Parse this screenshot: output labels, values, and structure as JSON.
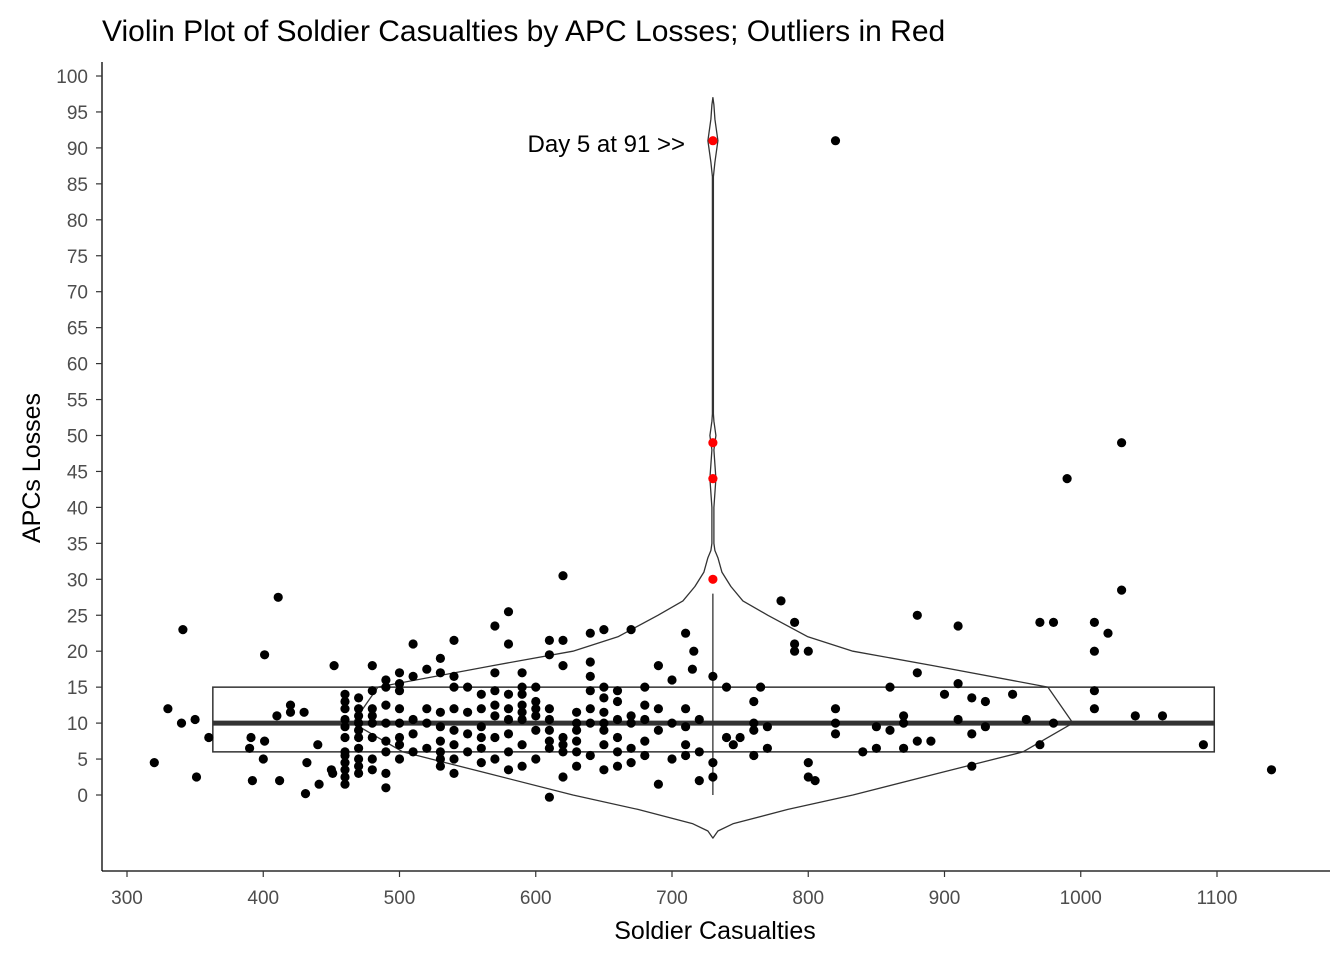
{
  "chart_data": {
    "type": "scatter",
    "title": "Violin Plot of Soldier Casualties by APC Losses; Outliers in Red",
    "xlabel": "Soldier Casualties",
    "ylabel": "APCs Losses",
    "xlim": [
      300,
      1100
    ],
    "ylim": [
      0,
      100
    ],
    "x_ticks": [
      "300",
      "400",
      "500",
      "600",
      "700",
      "800",
      "900",
      "1000",
      "1100"
    ],
    "y_ticks": [
      "0",
      "5",
      "10",
      "15",
      "20",
      "25",
      "30",
      "35",
      "40",
      "45",
      "50",
      "55",
      "60",
      "65",
      "70",
      "75",
      "80",
      "85",
      "90",
      "95",
      "100"
    ],
    "grid": false,
    "annotation": {
      "text": "Day 5 at 91 >>",
      "x": 720,
      "y": 91
    },
    "colors": {
      "points": "#000000",
      "outliers": "#ff0000",
      "violin": "#333333",
      "box": "#333333"
    },
    "box": {
      "x_min": 363,
      "x_max": 1098,
      "q1": 6,
      "median": 10,
      "q3": 15
    },
    "violin": {
      "x_center": 730,
      "y_values": [
        -6,
        -5,
        -4,
        -2,
        0,
        3,
        6,
        10,
        15,
        18,
        20,
        22,
        25,
        27,
        29,
        31,
        33,
        34,
        35,
        37,
        40,
        42,
        44,
        46,
        48,
        49,
        50,
        51,
        52,
        53,
        55,
        60,
        70,
        80,
        86,
        88,
        90,
        91,
        92,
        94,
        96,
        97
      ],
      "half_widths": [
        0,
        5,
        20,
        75,
        140,
        225,
        310,
        360,
        335,
        220,
        140,
        95,
        55,
        30,
        18,
        9,
        5,
        2,
        1,
        1,
        1,
        2,
        3,
        2,
        1,
        2,
        3,
        2,
        1,
        0.5,
        0.5,
        0.5,
        0.5,
        0.5,
        0.5,
        2,
        4,
        5,
        4,
        2,
        1,
        0
      ]
    },
    "whisker": {
      "x": 730,
      "from": 0,
      "to": 28
    },
    "outliers": [
      {
        "x": 730,
        "y": 91
      },
      {
        "x": 730,
        "y": 49
      },
      {
        "x": 730,
        "y": 44
      },
      {
        "x": 730,
        "y": 30
      }
    ],
    "points": [
      [
        320,
        4.5
      ],
      [
        330,
        12
      ],
      [
        340,
        10
      ],
      [
        341,
        23
      ],
      [
        350,
        10.5
      ],
      [
        351,
        2.5
      ],
      [
        360,
        8
      ],
      [
        390,
        6.5
      ],
      [
        391,
        8
      ],
      [
        392,
        2
      ],
      [
        400,
        5
      ],
      [
        401,
        7.5
      ],
      [
        401,
        19.5
      ],
      [
        410,
        11
      ],
      [
        411,
        27.5
      ],
      [
        412,
        2
      ],
      [
        420,
        12.5
      ],
      [
        430,
        11.5
      ],
      [
        431,
        0.2
      ],
      [
        432,
        4.5
      ],
      [
        440,
        7
      ],
      [
        441,
        1.5
      ],
      [
        450,
        3.5
      ],
      [
        451,
        3
      ],
      [
        452,
        18
      ],
      [
        460,
        1.5
      ],
      [
        460,
        2.5
      ],
      [
        460,
        3.5
      ],
      [
        460,
        4.5
      ],
      [
        460,
        5.5
      ],
      [
        460,
        6
      ],
      [
        460,
        8
      ],
      [
        460,
        9.5
      ],
      [
        460,
        10.5
      ],
      [
        460,
        12
      ],
      [
        460,
        13
      ],
      [
        460,
        14
      ],
      [
        470,
        3
      ],
      [
        470,
        4
      ],
      [
        470,
        5
      ],
      [
        470,
        6.5
      ],
      [
        470,
        8
      ],
      [
        470,
        9
      ],
      [
        470,
        10
      ],
      [
        470,
        11
      ],
      [
        470,
        12
      ],
      [
        470,
        13.5
      ],
      [
        480,
        3.5
      ],
      [
        480,
        5
      ],
      [
        480,
        8
      ],
      [
        480,
        10
      ],
      [
        480,
        11
      ],
      [
        480,
        12
      ],
      [
        480,
        14.5
      ],
      [
        480,
        18
      ],
      [
        490,
        1
      ],
      [
        490,
        3
      ],
      [
        490,
        6
      ],
      [
        490,
        7.5
      ],
      [
        490,
        10
      ],
      [
        490,
        12.5
      ],
      [
        490,
        15
      ],
      [
        490,
        16
      ],
      [
        500,
        5
      ],
      [
        500,
        7
      ],
      [
        500,
        8
      ],
      [
        500,
        10
      ],
      [
        500,
        12
      ],
      [
        500,
        14.5
      ],
      [
        500,
        15.5
      ],
      [
        500,
        17
      ],
      [
        510,
        6
      ],
      [
        510,
        8.5
      ],
      [
        510,
        10.5
      ],
      [
        510,
        16.5
      ],
      [
        510,
        21
      ],
      [
        520,
        6.5
      ],
      [
        520,
        10
      ],
      [
        520,
        12
      ],
      [
        520,
        17.5
      ],
      [
        530,
        4
      ],
      [
        530,
        5
      ],
      [
        530,
        6
      ],
      [
        530,
        7.5
      ],
      [
        530,
        9.5
      ],
      [
        530,
        11.5
      ],
      [
        530,
        17
      ],
      [
        530,
        19
      ],
      [
        540,
        3
      ],
      [
        540,
        5
      ],
      [
        540,
        7
      ],
      [
        540,
        9
      ],
      [
        540,
        12
      ],
      [
        540,
        15
      ],
      [
        540,
        16.5
      ],
      [
        540,
        21.5
      ],
      [
        550,
        6
      ],
      [
        550,
        8.5
      ],
      [
        550,
        11.5
      ],
      [
        550,
        15
      ],
      [
        560,
        4.5
      ],
      [
        560,
        6.5
      ],
      [
        560,
        8
      ],
      [
        560,
        9.5
      ],
      [
        560,
        12
      ],
      [
        560,
        14
      ],
      [
        570,
        5
      ],
      [
        570,
        8
      ],
      [
        570,
        11
      ],
      [
        570,
        12.5
      ],
      [
        570,
        14.5
      ],
      [
        570,
        17
      ],
      [
        570,
        23.5
      ],
      [
        580,
        3.5
      ],
      [
        580,
        6
      ],
      [
        580,
        8.5
      ],
      [
        580,
        10.5
      ],
      [
        580,
        12
      ],
      [
        580,
        14
      ],
      [
        580,
        21
      ],
      [
        580,
        25.5
      ],
      [
        590,
        4
      ],
      [
        590,
        7
      ],
      [
        590,
        10.5
      ],
      [
        590,
        11.5
      ],
      [
        590,
        12.5
      ],
      [
        590,
        14
      ],
      [
        590,
        15
      ],
      [
        590,
        17
      ],
      [
        600,
        5
      ],
      [
        600,
        9
      ],
      [
        600,
        11
      ],
      [
        600,
        12
      ],
      [
        600,
        13
      ],
      [
        600,
        15
      ],
      [
        610,
        -0.3
      ],
      [
        610,
        6.5
      ],
      [
        610,
        7.5
      ],
      [
        610,
        9
      ],
      [
        610,
        10.5
      ],
      [
        610,
        12
      ],
      [
        610,
        19.5
      ],
      [
        610,
        21.5
      ],
      [
        620,
        2.5
      ],
      [
        620,
        6
      ],
      [
        620,
        7
      ],
      [
        620,
        8
      ],
      [
        620,
        18
      ],
      [
        620,
        21.5
      ],
      [
        620,
        30.5
      ],
      [
        630,
        4
      ],
      [
        630,
        6
      ],
      [
        630,
        7.5
      ],
      [
        630,
        9
      ],
      [
        630,
        10
      ],
      [
        630,
        11.5
      ],
      [
        640,
        5.5
      ],
      [
        640,
        10
      ],
      [
        640,
        12
      ],
      [
        640,
        14.5
      ],
      [
        640,
        16.5
      ],
      [
        640,
        18.5
      ],
      [
        640,
        22.5
      ],
      [
        650,
        3.5
      ],
      [
        650,
        7
      ],
      [
        650,
        9
      ],
      [
        650,
        10
      ],
      [
        650,
        11.5
      ],
      [
        650,
        13.5
      ],
      [
        650,
        15
      ],
      [
        650,
        23
      ],
      [
        660,
        4
      ],
      [
        660,
        6
      ],
      [
        660,
        8
      ],
      [
        660,
        10.5
      ],
      [
        660,
        13
      ],
      [
        660,
        14.5
      ],
      [
        670,
        4.5
      ],
      [
        670,
        6.5
      ],
      [
        670,
        10
      ],
      [
        670,
        11
      ],
      [
        670,
        23
      ],
      [
        680,
        5.5
      ],
      [
        680,
        7.5
      ],
      [
        680,
        10.5
      ],
      [
        680,
        12.5
      ],
      [
        680,
        15
      ],
      [
        690,
        1.5
      ],
      [
        690,
        9
      ],
      [
        690,
        12
      ],
      [
        690,
        18
      ],
      [
        700,
        5
      ],
      [
        700,
        10
      ],
      [
        700,
        16
      ],
      [
        710,
        5.5
      ],
      [
        710,
        7
      ],
      [
        710,
        9.5
      ],
      [
        710,
        12
      ],
      [
        710,
        22.5
      ],
      [
        715,
        17.5
      ],
      [
        716,
        20
      ],
      [
        720,
        2
      ],
      [
        720,
        6
      ],
      [
        720,
        10.5
      ],
      [
        730,
        2.5
      ],
      [
        730,
        4.5
      ],
      [
        730,
        16.5
      ],
      [
        740,
        8
      ],
      [
        740,
        15
      ],
      [
        745,
        7
      ],
      [
        750,
        8
      ],
      [
        760,
        5.5
      ],
      [
        760,
        9
      ],
      [
        760,
        10
      ],
      [
        760,
        13
      ],
      [
        765,
        15
      ],
      [
        770,
        6.5
      ],
      [
        770,
        9.5
      ],
      [
        780,
        27
      ],
      [
        790,
        20
      ],
      [
        790,
        21
      ],
      [
        790,
        24
      ],
      [
        800,
        2.5
      ],
      [
        800,
        4.5
      ],
      [
        800,
        20
      ],
      [
        805,
        2
      ],
      [
        820,
        8.5
      ],
      [
        820,
        10
      ],
      [
        820,
        12
      ],
      [
        820,
        91
      ],
      [
        840,
        6
      ],
      [
        850,
        6.5
      ],
      [
        850,
        9.5
      ],
      [
        860,
        15
      ],
      [
        870,
        6.5
      ],
      [
        870,
        10
      ],
      [
        870,
        11
      ],
      [
        880,
        7.5
      ],
      [
        880,
        17
      ],
      [
        880,
        25
      ],
      [
        890,
        7.5
      ],
      [
        900,
        14
      ],
      [
        910,
        10.5
      ],
      [
        910,
        15.5
      ],
      [
        910,
        23.5
      ],
      [
        920,
        4
      ],
      [
        920,
        8.5
      ],
      [
        920,
        13.5
      ],
      [
        930,
        9.5
      ],
      [
        930,
        13
      ],
      [
        950,
        14
      ],
      [
        960,
        10.5
      ],
      [
        970,
        7
      ],
      [
        970,
        24
      ],
      [
        980,
        10
      ],
      [
        980,
        24
      ],
      [
        1010,
        12
      ],
      [
        1010,
        14.5
      ],
      [
        1010,
        20
      ],
      [
        1010,
        24
      ],
      [
        1020,
        22.5
      ],
      [
        1030,
        28.5
      ],
      [
        1030,
        49
      ],
      [
        1040,
        11
      ],
      [
        1060,
        11
      ],
      [
        1090,
        7
      ],
      [
        1140,
        3.5
      ],
      [
        990,
        44
      ],
      [
        860,
        9
      ],
      [
        420,
        11.5
      ]
    ]
  }
}
